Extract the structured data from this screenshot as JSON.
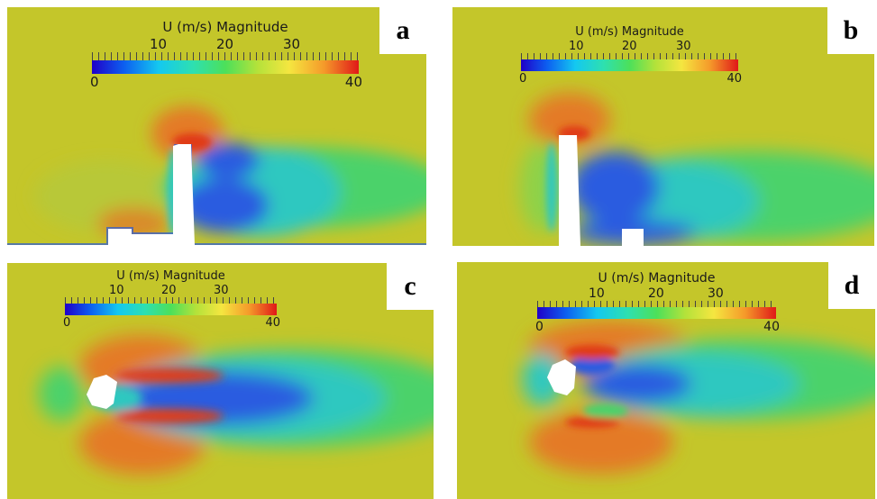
{
  "colorbar": {
    "title": "U (m/s) Magnitude",
    "ticks_top": [
      "10",
      "20",
      "30"
    ],
    "min_label": "0",
    "max_label": "40",
    "range": [
      0,
      40
    ],
    "unit": "m/s"
  },
  "panels": [
    {
      "label": "a"
    },
    {
      "label": "b"
    },
    {
      "label": "c"
    },
    {
      "label": "d"
    }
  ],
  "colors": {
    "background": "#ffffff",
    "freestream": "#c4c62a",
    "low_speed": "#1a3ad8",
    "high_speed": "#e04420"
  }
}
